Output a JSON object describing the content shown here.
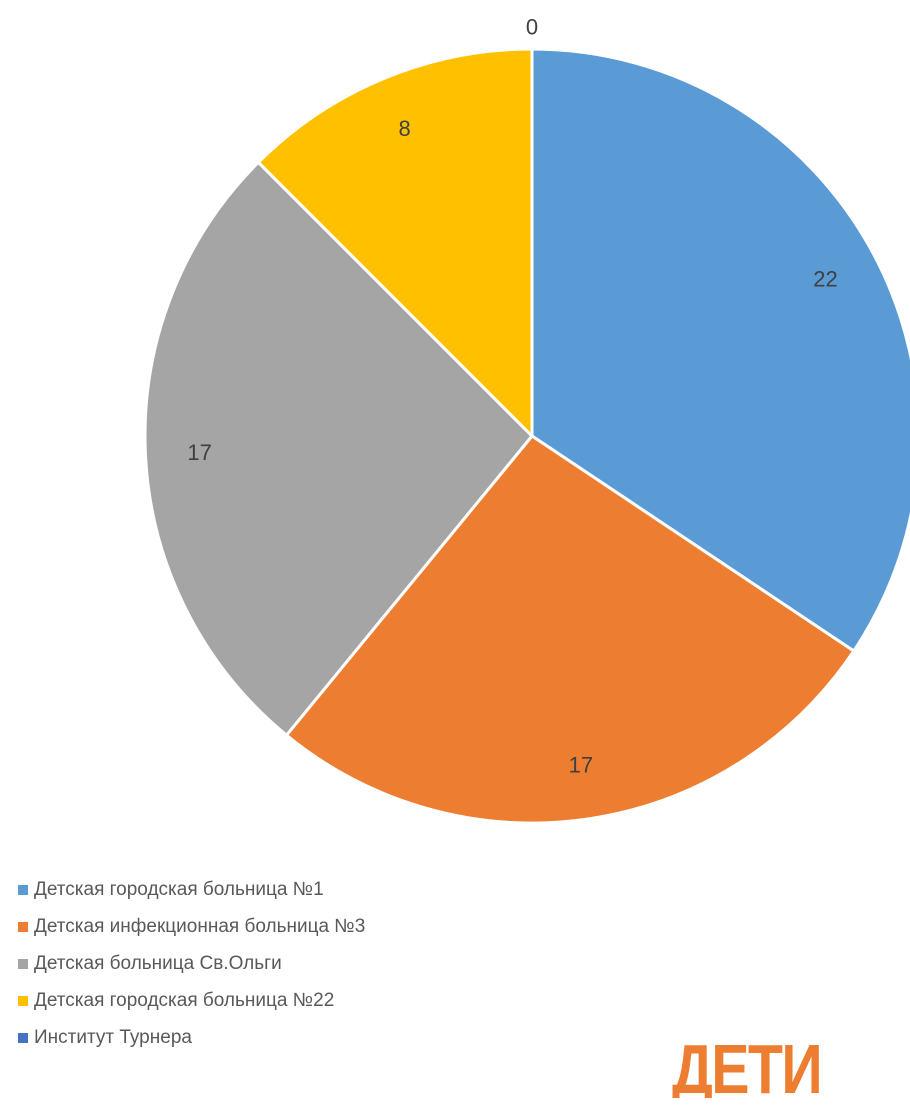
{
  "chart_data": {
    "type": "pie",
    "categories": [
      "Детская городская больница №1",
      "Детская инфекционная больница №3",
      "Детская больница Св.Ольги",
      "Детская городская больница №22",
      "Институт Турнера"
    ],
    "values": [
      22,
      17,
      17,
      8,
      0
    ],
    "colors": [
      "#5B9BD5",
      "#ED7D31",
      "#A5A5A5",
      "#FFC000",
      "#4472C4"
    ],
    "legend_position": "bottom-left",
    "start_angle_deg": 0,
    "direction": "clockwise"
  },
  "logo": {
    "text": "ДЕТИ",
    "color": "#ED7D31"
  }
}
